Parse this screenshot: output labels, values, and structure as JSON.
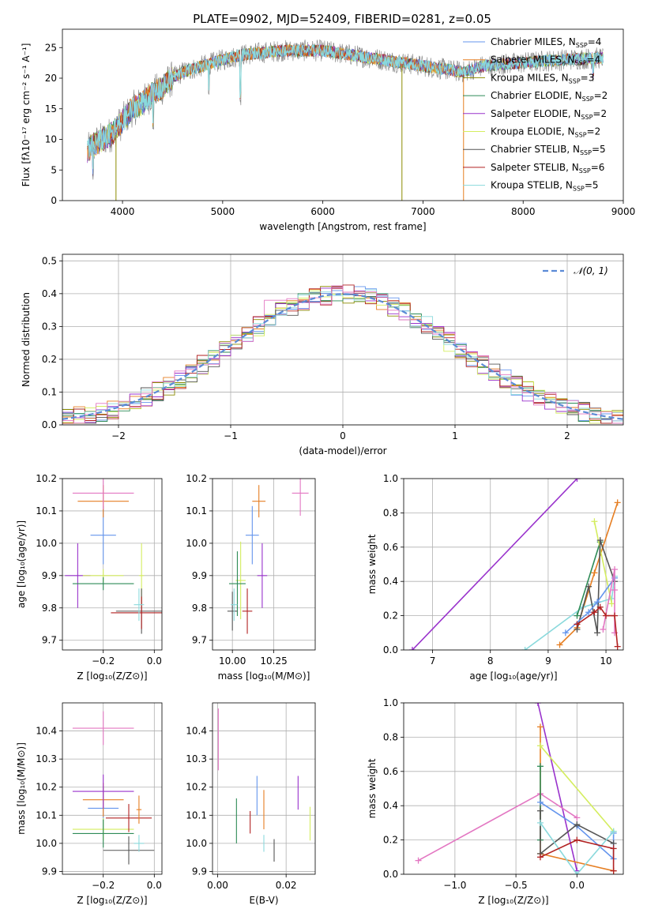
{
  "figure": {
    "title": "PLATE=0902, MJD=52409, FIBERID=0281, z=0.05"
  },
  "colors": {
    "chabrier_miles": "#6495ed",
    "salpeter_miles": "#e67e22",
    "kroupa_miles": "#8b8b00",
    "chabrier_elodie": "#2e8b57",
    "salpeter_elodie": "#9932cc",
    "kroupa_elodie": "#d4ed5f",
    "chabrier_stelib": "#555555",
    "salpeter_stelib": "#b22222",
    "kroupa_stelib": "#8ad9dc",
    "pink": "#e377c2",
    "spectrum_grey": "#808080",
    "gauss": "#5b8bd6",
    "grid": "#b0b0b0"
  },
  "chart_data": [
    {
      "id": "spectrum",
      "type": "line",
      "title": "PLATE=0902, MJD=52409, FIBERID=0281, z=0.05",
      "xlabel": "wavelength [Angstrom, rest frame]",
      "ylabel": "Flux [fλ10⁻¹⁷ erg cm⁻² s⁻¹ A⁻¹]",
      "xlim": [
        3400,
        9000
      ],
      "ylim": [
        0,
        28
      ],
      "xticks": [
        4000,
        5000,
        6000,
        7000,
        8000,
        9000
      ],
      "yticks": [
        0,
        5,
        10,
        15,
        20,
        25
      ],
      "grid": false,
      "legend_position": "top-right",
      "legend": [
        {
          "base": "Chabrier MILES, N",
          "sub": "SSP",
          "tail": "=4",
          "color_key": "chabrier_miles"
        },
        {
          "base": "Salpeter MILES, N",
          "sub": "SSP",
          "tail": "=4",
          "color_key": "salpeter_miles"
        },
        {
          "base": "Kroupa MILES, N",
          "sub": "SSP",
          "tail": "=3",
          "color_key": "kroupa_miles"
        },
        {
          "base": "Chabrier ELODIE, N",
          "sub": "SSP",
          "tail": "=2",
          "color_key": "chabrier_elodie"
        },
        {
          "base": "Salpeter ELODIE, N",
          "sub": "SSP",
          "tail": "=2",
          "color_key": "salpeter_elodie"
        },
        {
          "base": "Kroupa ELODIE, N",
          "sub": "SSP",
          "tail": "=2",
          "color_key": "kroupa_elodie"
        },
        {
          "base": "Chabrier STELIB, N",
          "sub": "SSP",
          "tail": "=5",
          "color_key": "chabrier_stelib"
        },
        {
          "base": "Salpeter STELIB, N",
          "sub": "SSP",
          "tail": "=6",
          "color_key": "salpeter_stelib"
        },
        {
          "base": "Kroupa STELIB, N",
          "sub": "SSP",
          "tail": "=5",
          "color_key": "kroupa_stelib"
        }
      ],
      "continuum": {
        "x": [
          3650,
          3700,
          3800,
          3900,
          4000,
          4100,
          4200,
          4300,
          4400,
          4500,
          4600,
          4700,
          4800,
          4900,
          5000,
          5200,
          5400,
          5600,
          5800,
          6000,
          6200,
          6400,
          6600,
          6800,
          7000,
          7200,
          7400,
          7600,
          7800,
          8000,
          8200,
          8400,
          8600,
          8800
        ],
        "y": [
          8,
          9,
          10,
          11,
          13,
          15,
          16,
          17.5,
          18.5,
          20,
          21,
          21.5,
          22,
          22.5,
          23,
          23.8,
          24.2,
          24.5,
          24.5,
          24.5,
          24,
          23.5,
          23,
          22.5,
          22,
          21.5,
          21,
          22,
          22.3,
          22.5,
          22.8,
          23,
          23.2,
          23.3
        ]
      },
      "dips": [
        {
          "x": 3705,
          "y": 3
        },
        {
          "x": 3935,
          "y": 0
        },
        {
          "x": 4305,
          "y": 11
        },
        {
          "x": 4862,
          "y": 17
        },
        {
          "x": 5178,
          "y": 15.5
        },
        {
          "x": 6790,
          "y": 0
        },
        {
          "x": 7405,
          "y": 0
        },
        {
          "x": 8700,
          "y": 19
        }
      ]
    },
    {
      "id": "residuals",
      "type": "histogram",
      "xlabel": "(data-model)/error",
      "ylabel": "Normed distribution",
      "xlim": [
        -2.5,
        2.5
      ],
      "ylim": [
        0,
        0.52
      ],
      "xticks": [
        -2,
        -1,
        0,
        1,
        2
      ],
      "yticks": [
        0.0,
        0.1,
        0.2,
        0.3,
        0.4,
        0.5
      ],
      "grid": true,
      "legend_position": "top-right",
      "gauss_label": "𝒩(0, 1)",
      "bin_width": 0.1,
      "series_keys": [
        "chabrier_miles",
        "salpeter_miles",
        "kroupa_miles",
        "chabrier_elodie",
        "salpeter_elodie",
        "kroupa_elodie",
        "chabrier_stelib",
        "salpeter_stelib",
        "kroupa_stelib",
        "pink"
      ]
    },
    {
      "id": "age_vs_Z",
      "type": "scatter",
      "xlabel": "Z [log₁₀(Z/Z⊙)]",
      "ylabel": "age  [log₁₀(age/yr)]",
      "xlim": [
        -0.36,
        0.03
      ],
      "ylim": [
        9.67,
        10.2
      ],
      "xticks": [
        -0.2,
        0.0
      ],
      "yticks": [
        9.7,
        9.8,
        9.9,
        10.0,
        10.1,
        10.2
      ],
      "grid": true,
      "points": [
        {
          "x": -0.2,
          "y": 10.025,
          "xerr": 0.05,
          "yerr": 0.09,
          "c": "chabrier_miles"
        },
        {
          "x": -0.2,
          "y": 10.13,
          "xerr": 0.1,
          "yerr": 0.05,
          "c": "salpeter_miles"
        },
        {
          "x": -0.2,
          "y": 10.155,
          "xerr": 0.12,
          "yerr": 0.05,
          "c": "pink"
        },
        {
          "x": -0.3,
          "y": 9.9,
          "xerr": 0.05,
          "yerr": 0.1,
          "c": "salpeter_elodie"
        },
        {
          "x": -0.2,
          "y": 9.9,
          "xerr": 0.08,
          "yerr": 0.02,
          "c": "kroupa_elodie"
        },
        {
          "x": -0.2,
          "y": 9.875,
          "xerr": 0.12,
          "yerr": 0.02,
          "c": "chabrier_elodie"
        },
        {
          "x": -0.05,
          "y": 9.9,
          "xerr": 0.01,
          "yerr": 0.1,
          "c": "kroupa_elodie"
        },
        {
          "x": -0.05,
          "y": 9.79,
          "xerr": 0.1,
          "yerr": 0.07,
          "c": "chabrier_stelib"
        },
        {
          "x": -0.05,
          "y": 9.785,
          "xerr": 0.12,
          "yerr": 0.05,
          "c": "salpeter_stelib"
        },
        {
          "x": -0.06,
          "y": 9.81,
          "xerr": 0.02,
          "yerr": 0.05,
          "c": "kroupa_stelib"
        }
      ]
    },
    {
      "id": "age_vs_mass",
      "type": "scatter",
      "xlabel": "mass [log₁₀(M/M⊙)]",
      "ylabel": "",
      "xlim": [
        9.88,
        10.5
      ],
      "ylim": [
        9.67,
        10.2
      ],
      "xticks": [
        10.0,
        10.25
      ],
      "yticks": [
        9.7,
        9.8,
        9.9,
        10.0,
        10.1,
        10.2
      ],
      "grid": true,
      "points": [
        {
          "x": 10.12,
          "y": 10.025,
          "xerr": 0.04,
          "yerr": 0.09,
          "c": "chabrier_miles"
        },
        {
          "x": 10.16,
          "y": 10.13,
          "xerr": 0.04,
          "yerr": 0.05,
          "c": "salpeter_miles"
        },
        {
          "x": 10.41,
          "y": 10.155,
          "xerr": 0.05,
          "yerr": 0.07,
          "c": "pink"
        },
        {
          "x": 10.18,
          "y": 9.9,
          "xerr": 0.03,
          "yerr": 0.1,
          "c": "salpeter_elodie"
        },
        {
          "x": 10.05,
          "y": 9.885,
          "xerr": 0.03,
          "yerr": 0.12,
          "c": "kroupa_elodie"
        },
        {
          "x": 10.03,
          "y": 9.875,
          "xerr": 0.05,
          "yerr": 0.1,
          "c": "chabrier_elodie"
        },
        {
          "x": 10.0,
          "y": 9.79,
          "xerr": 0.03,
          "yerr": 0.06,
          "c": "chabrier_stelib"
        },
        {
          "x": 10.09,
          "y": 9.79,
          "xerr": 0.03,
          "yerr": 0.07,
          "c": "salpeter_stelib"
        },
        {
          "x": 10.01,
          "y": 9.81,
          "xerr": 0.02,
          "yerr": 0.05,
          "c": "kroupa_stelib"
        }
      ]
    },
    {
      "id": "massweight_vs_age",
      "type": "line",
      "xlabel": "age  [log₁₀(age/yr)]",
      "ylabel": "mass weight",
      "xlim": [
        6.5,
        10.3
      ],
      "ylim": [
        0,
        1.0
      ],
      "xticks": [
        7,
        8,
        9,
        10
      ],
      "yticks": [
        0.0,
        0.2,
        0.4,
        0.6,
        0.8,
        1.0
      ],
      "grid": true,
      "series": [
        {
          "c": "salpeter_elodie",
          "x": [
            6.65,
            9.5
          ],
          "y": [
            0.0,
            1.0
          ]
        },
        {
          "c": "salpeter_miles",
          "x": [
            9.2,
            9.5,
            9.8,
            10.2
          ],
          "y": [
            0.03,
            0.13,
            0.45,
            0.86
          ]
        },
        {
          "c": "kroupa_stelib",
          "x": [
            8.6,
            9.6,
            10.1,
            10.15
          ],
          "y": [
            0.0,
            0.25,
            0.3,
            0.43
          ]
        },
        {
          "c": "chabrier_elodie",
          "x": [
            9.5,
            9.9
          ],
          "y": [
            0.2,
            0.63
          ]
        },
        {
          "c": "kroupa_elodie",
          "x": [
            9.8,
            10.1
          ],
          "y": [
            0.75,
            0.27
          ]
        },
        {
          "c": "chabrier_stelib",
          "x": [
            9.5,
            9.7,
            9.85,
            9.9,
            10.15
          ],
          "y": [
            0.12,
            0.37,
            0.1,
            0.64,
            0.4
          ]
        },
        {
          "c": "chabrier_miles",
          "x": [
            9.3,
            9.7,
            9.85,
            10.15
          ],
          "y": [
            0.1,
            0.22,
            0.28,
            0.42
          ]
        },
        {
          "c": "pink",
          "x": [
            9.95,
            10.15,
            10.15,
            10.15
          ],
          "y": [
            0.12,
            0.47,
            0.35,
            0.1
          ]
        },
        {
          "c": "salpeter_stelib",
          "x": [
            9.5,
            9.8,
            9.9,
            10.0,
            10.15,
            10.2
          ],
          "y": [
            0.15,
            0.22,
            0.25,
            0.2,
            0.2,
            0.02
          ]
        }
      ]
    },
    {
      "id": "mass_vs_Z",
      "type": "scatter",
      "xlabel": "Z [log₁₀(Z/Z⊙)]",
      "ylabel": "mass [log₁₀(M/M⊙)]",
      "xlim": [
        -0.36,
        0.03
      ],
      "ylim": [
        9.89,
        10.5
      ],
      "xticks": [
        -0.2,
        0.0
      ],
      "yticks": [
        9.9,
        10.0,
        10.1,
        10.2,
        10.3,
        10.4
      ],
      "grid": true,
      "points": [
        {
          "x": -0.2,
          "y": 10.41,
          "xerr": 0.12,
          "yerr": 0.06,
          "c": "pink"
        },
        {
          "x": -0.2,
          "y": 10.125,
          "xerr": 0.06,
          "yerr": 0.08,
          "c": "chabrier_miles"
        },
        {
          "x": -0.2,
          "y": 10.155,
          "xerr": 0.08,
          "yerr": 0.06,
          "c": "salpeter_miles"
        },
        {
          "x": -0.2,
          "y": 10.185,
          "xerr": 0.12,
          "yerr": 0.06,
          "c": "salpeter_elodie"
        },
        {
          "x": -0.2,
          "y": 10.05,
          "xerr": 0.12,
          "yerr": 0.04,
          "c": "kroupa_elodie"
        },
        {
          "x": -0.2,
          "y": 10.035,
          "xerr": 0.12,
          "yerr": 0.05,
          "c": "chabrier_elodie"
        },
        {
          "x": -0.1,
          "y": 10.09,
          "xerr": 0.09,
          "yerr": 0.05,
          "c": "salpeter_stelib"
        },
        {
          "x": -0.1,
          "y": 9.975,
          "xerr": 0.1,
          "yerr": 0.05,
          "c": "chabrier_stelib"
        },
        {
          "x": -0.06,
          "y": 10.0,
          "xerr": 0.02,
          "yerr": 0.03,
          "c": "kroupa_stelib"
        },
        {
          "x": -0.06,
          "y": 10.12,
          "xerr": 0.01,
          "yerr": 0.05,
          "c": "salpeter_miles"
        }
      ]
    },
    {
      "id": "mass_vs_EBV",
      "type": "scatter",
      "xlabel": "E(B-V)",
      "ylabel": "",
      "xlim": [
        -0.0015,
        0.0285
      ],
      "ylim": [
        9.89,
        10.5
      ],
      "xticks": [
        0.0,
        0.02
      ],
      "yticks": [
        9.9,
        10.0,
        10.1,
        10.2,
        10.3,
        10.4
      ],
      "grid": true,
      "points": [
        {
          "x": 0.0002,
          "y": 10.37,
          "xerr": 0,
          "yerr": 0.11,
          "c": "pink"
        },
        {
          "x": 0.0115,
          "y": 10.17,
          "xerr": 0,
          "yerr": 0.07,
          "c": "chabrier_miles"
        },
        {
          "x": 0.0135,
          "y": 10.12,
          "xerr": 0,
          "yerr": 0.07,
          "c": "salpeter_miles"
        },
        {
          "x": 0.0235,
          "y": 10.18,
          "xerr": 0,
          "yerr": 0.06,
          "c": "salpeter_elodie"
        },
        {
          "x": 0.027,
          "y": 10.07,
          "xerr": 0,
          "yerr": 0.06,
          "c": "kroupa_elodie"
        },
        {
          "x": 0.0055,
          "y": 10.08,
          "xerr": 0,
          "yerr": 0.08,
          "c": "chabrier_elodie"
        },
        {
          "x": 0.0095,
          "y": 10.075,
          "xerr": 0,
          "yerr": 0.04,
          "c": "salpeter_stelib"
        },
        {
          "x": 0.0165,
          "y": 9.975,
          "xerr": 0,
          "yerr": 0.04,
          "c": "chabrier_stelib"
        },
        {
          "x": 0.0135,
          "y": 10.0,
          "xerr": 0,
          "yerr": 0.03,
          "c": "kroupa_stelib"
        }
      ]
    },
    {
      "id": "massweight_vs_Z",
      "type": "line",
      "xlabel": "Z [log₁₀(Z/Z⊙)]",
      "ylabel": "mass weight",
      "xlim": [
        -1.42,
        0.38
      ],
      "ylim": [
        0,
        1.0
      ],
      "xticks": [
        -1.0,
        -0.5,
        0.0
      ],
      "yticks": [
        0.0,
        0.2,
        0.4,
        0.6,
        0.8,
        1.0
      ],
      "grid": true,
      "series": [
        {
          "c": "salpeter_elodie",
          "x": [
            -0.32,
            0.0
          ],
          "y": [
            1.0,
            0.02
          ]
        },
        {
          "c": "pink",
          "x": [
            -1.3,
            -0.3,
            0.0
          ],
          "y": [
            0.08,
            0.47,
            0.33
          ]
        },
        {
          "c": "salpeter_miles",
          "x": [
            -0.3,
            -0.3,
            0.3
          ],
          "y": [
            0.86,
            0.12,
            0.02
          ]
        },
        {
          "c": "chabrier_elodie",
          "x": [
            -0.3,
            -0.3
          ],
          "y": [
            0.63,
            0.2
          ]
        },
        {
          "c": "kroupa_elodie",
          "x": [
            -0.3,
            0.3
          ],
          "y": [
            0.75,
            0.25
          ]
        },
        {
          "c": "chabrier_miles",
          "x": [
            -0.3,
            0.0,
            0.3,
            0.3
          ],
          "y": [
            0.42,
            0.28,
            0.09,
            0.24
          ]
        },
        {
          "c": "chabrier_stelib",
          "x": [
            -0.3,
            -0.3,
            0.0,
            0.3
          ],
          "y": [
            0.37,
            0.12,
            0.29,
            0.18
          ]
        },
        {
          "c": "kroupa_stelib",
          "x": [
            -0.3,
            0.0,
            0.3
          ],
          "y": [
            0.3,
            0.0,
            0.25
          ]
        },
        {
          "c": "salpeter_stelib",
          "x": [
            -0.3,
            0.0,
            0.3,
            0.3
          ],
          "y": [
            0.1,
            0.2,
            0.15,
            0.02
          ]
        }
      ]
    }
  ]
}
